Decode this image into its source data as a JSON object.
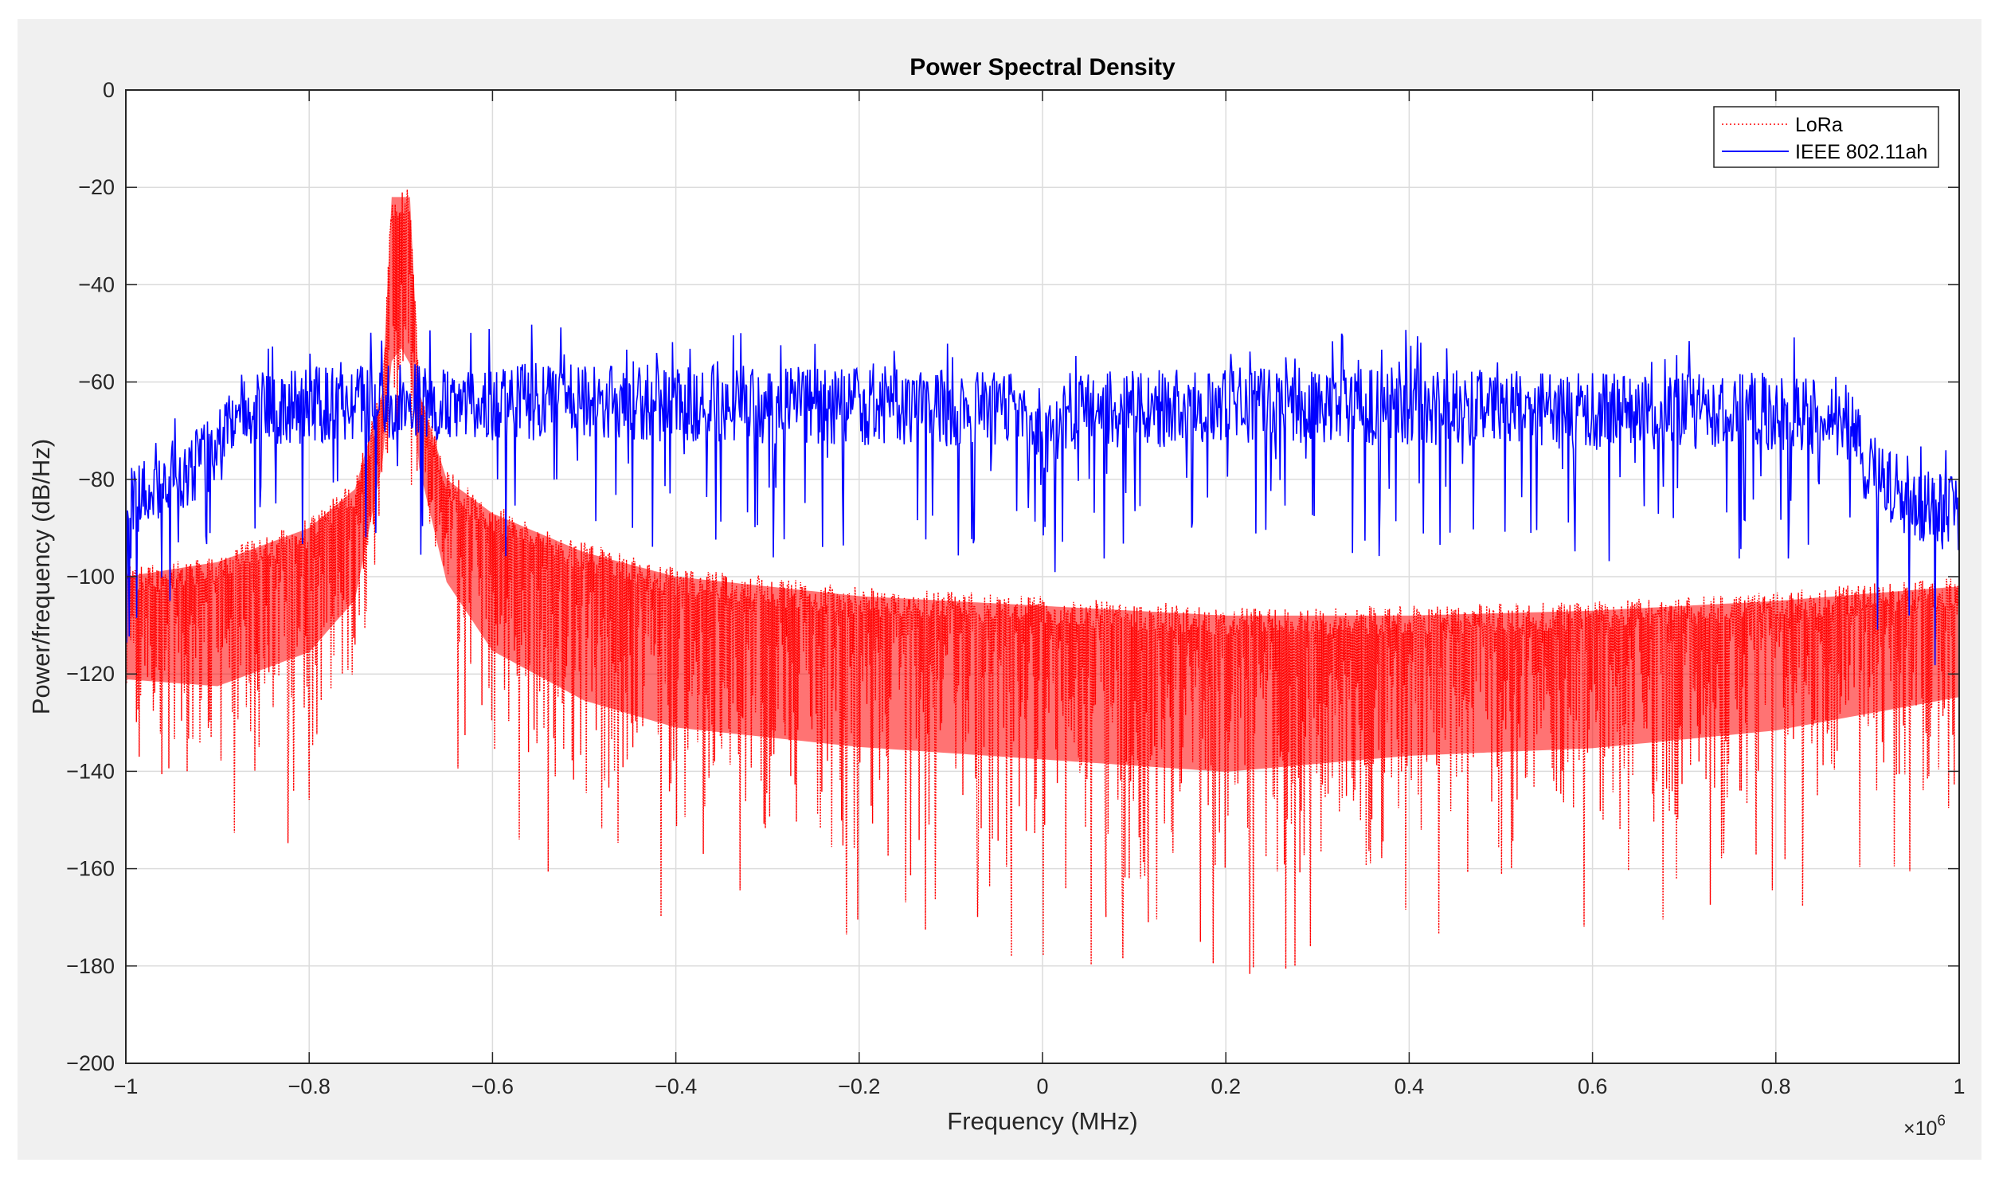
{
  "chart_data": {
    "type": "line",
    "title": "Power Spectral Density",
    "xlabel": "Frequency (MHz)",
    "ylabel": "Power/frequency (dB/Hz)",
    "x_exponent_base": "×10",
    "x_exponent_power": "6",
    "xlim": [
      -1000000,
      1000000
    ],
    "ylim": [
      -200,
      0
    ],
    "xticks": [
      -1000000,
      -800000,
      -600000,
      -400000,
      -200000,
      0,
      200000,
      400000,
      600000,
      800000,
      1000000
    ],
    "xtick_labels": [
      "−1",
      "−0.8",
      "−0.6",
      "−0.4",
      "−0.2",
      "0",
      "0.2",
      "0.4",
      "0.6",
      "0.8",
      "1"
    ],
    "yticks": [
      0,
      -20,
      -40,
      -60,
      -80,
      -100,
      -120,
      -140,
      -160,
      -180,
      -200
    ],
    "ytick_labels": [
      "0",
      "−20",
      "−40",
      "−60",
      "−80",
      "−100",
      "−120",
      "−140",
      "−160",
      "−180",
      "−200"
    ],
    "grid": true,
    "legend_position": "top-right",
    "series": [
      {
        "name": "LoRa",
        "color": "#ff0000",
        "style": "dotted",
        "peak_x": [
          -710000,
          -690000
        ],
        "peak_y": -20,
        "upper_envelope": {
          "x": [
            -1000000,
            -900000,
            -800000,
            -750000,
            -720000,
            -710000,
            -690000,
            -680000,
            -650000,
            -600000,
            -500000,
            -400000,
            -200000,
            0,
            200000,
            400000,
            600000,
            800000,
            1000000
          ],
          "y": [
            -98,
            -95,
            -88,
            -80,
            -60,
            -20,
            -20,
            -60,
            -78,
            -85,
            -93,
            -98,
            -102,
            -104,
            -106,
            -106,
            -105,
            -103,
            -100
          ]
        },
        "lower_envelope": {
          "x": [
            -1000000,
            -900000,
            -800000,
            -750000,
            -720000,
            -700000,
            -680000,
            -650000,
            -600000,
            -500000,
            -400000,
            -200000,
            0,
            200000,
            300000,
            400000,
            600000,
            800000,
            1000000
          ],
          "y": [
            -140,
            -145,
            -138,
            -125,
            -90,
            -80,
            -92,
            -120,
            -140,
            -152,
            -158,
            -162,
            -165,
            -168,
            -165,
            -162,
            -160,
            -155,
            -145
          ]
        }
      },
      {
        "name": "IEEE 802.11ah",
        "color": "#0000ff",
        "style": "solid",
        "center_envelope": {
          "x": [
            -1000000,
            -950000,
            -900000,
            -880000,
            -850000,
            -700000,
            -500000,
            -200000,
            -30000,
            0,
            30000,
            200000,
            400000,
            600000,
            800000,
            880000,
            900000,
            950000,
            1000000
          ],
          "y": [
            -85,
            -80,
            -74,
            -66,
            -65,
            -64,
            -64,
            -65,
            -66,
            -75,
            -66,
            -65,
            -65,
            -66,
            -66,
            -68,
            -78,
            -85,
            -88
          ]
        }
      }
    ]
  }
}
